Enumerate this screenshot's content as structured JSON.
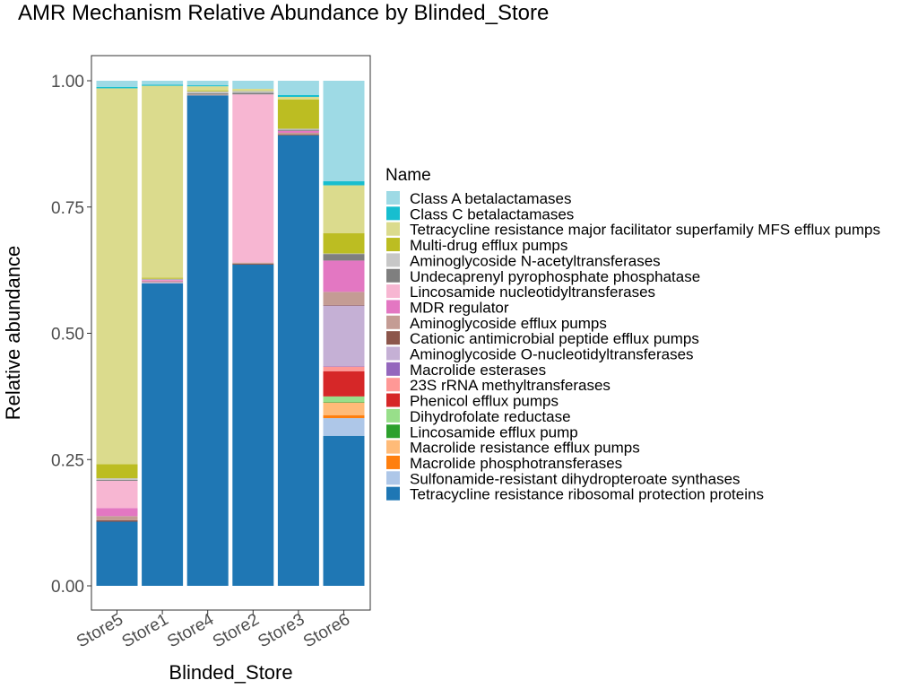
{
  "chart_data": {
    "type": "bar",
    "stacked": true,
    "title": "AMR Mechanism Relative Abundance by Blinded_Store",
    "xlabel": "Blinded_Store",
    "ylabel": "Relative abundance",
    "ylim": [
      0,
      1
    ],
    "yticks": [
      "0.00",
      "0.25",
      "0.50",
      "0.75",
      "1.00"
    ],
    "ytick_values": [
      0,
      0.25,
      0.5,
      0.75,
      1.0
    ],
    "grid": false,
    "legend_position": "right",
    "legend_title": "Name",
    "categories": [
      "Store5",
      "Store1",
      "Store4",
      "Store2",
      "Store3",
      "Store6"
    ],
    "series": [
      {
        "name": "Tetracycline resistance ribosomal protection proteins",
        "color": "#1f77b4",
        "values": [
          0.127,
          0.599,
          0.971,
          0.636,
          0.892,
          0.297
        ]
      },
      {
        "name": "Sulfonamide-resistant dihydropteroate synthases",
        "color": "#aec7e8",
        "values": [
          0,
          0,
          0,
          0,
          0,
          0.035
        ]
      },
      {
        "name": "Macrolide phosphotransferases",
        "color": "#ff7f0e",
        "values": [
          0,
          0,
          0,
          0,
          0,
          0.006
        ]
      },
      {
        "name": "Macrolide resistance efflux pumps",
        "color": "#ffbb78",
        "values": [
          0,
          0,
          0,
          0,
          0,
          0.025
        ]
      },
      {
        "name": "Lincosamide efflux pump",
        "color": "#2ca02c",
        "values": [
          0,
          0,
          0,
          0,
          0,
          0.001
        ]
      },
      {
        "name": "Dihydrofolate reductase",
        "color": "#98df8a",
        "values": [
          0,
          0,
          0,
          0,
          0,
          0.011
        ]
      },
      {
        "name": "Phenicol efflux pumps",
        "color": "#d62728",
        "values": [
          0,
          0,
          0,
          0,
          0,
          0.05
        ]
      },
      {
        "name": "23S rRNA methyltransferases",
        "color": "#ff9896",
        "values": [
          0,
          0,
          0,
          0,
          0,
          0.009
        ]
      },
      {
        "name": "Macrolide esterases",
        "color": "#9467bd",
        "values": [
          0,
          0,
          0,
          0,
          0,
          0.001
        ]
      },
      {
        "name": "Aminoglycoside O-nucleotidyltransferases",
        "color": "#c5b0d5",
        "values": [
          0,
          0.002,
          0,
          0,
          0,
          0.12
        ]
      },
      {
        "name": "Cationic antimicrobial peptide efflux pumps",
        "color": "#8c564b",
        "values": [
          0.003,
          0,
          0,
          0.002,
          0.002,
          0.001
        ]
      },
      {
        "name": "Aminoglycoside efflux pumps",
        "color": "#c49c94",
        "values": [
          0.008,
          0.002,
          0.002,
          0.002,
          0.003,
          0.026
        ]
      },
      {
        "name": "MDR regulator",
        "color": "#e377c2",
        "values": [
          0.016,
          0.002,
          0,
          0,
          0.004,
          0.062
        ]
      },
      {
        "name": "Lincosamide nucleotidyltransferases",
        "color": "#f7b6d2",
        "values": [
          0.054,
          0.001,
          0,
          0.333,
          0,
          0
        ]
      },
      {
        "name": "Undecaprenyl pyrophosphate phosphatase",
        "color": "#7f7f7f",
        "values": [
          0.002,
          0.001,
          0.002,
          0.003,
          0.002,
          0.013
        ]
      },
      {
        "name": "Aminoglycoside N-acetyltransferases",
        "color": "#c7c7c7",
        "values": [
          0.003,
          0.001,
          0.004,
          0.004,
          0.002,
          0.001
        ]
      },
      {
        "name": "Multi-drug efflux pumps",
        "color": "#bcbd22",
        "values": [
          0.028,
          0.002,
          0.002,
          0.001,
          0.058,
          0.04
        ]
      },
      {
        "name": "Tetracycline resistance major facilitator superfamily MFS efflux pumps",
        "color": "#dbdb8d",
        "values": [
          0.744,
          0.38,
          0.008,
          0.003,
          0.005,
          0.095
        ]
      },
      {
        "name": "Class C betalactamases",
        "color": "#17becf",
        "values": [
          0.003,
          0.002,
          0.002,
          0,
          0.004,
          0.008
        ]
      },
      {
        "name": "Class A betalactamases",
        "color": "#9edae5",
        "values": [
          0.012,
          0.008,
          0.009,
          0.016,
          0.028,
          0.199
        ]
      }
    ]
  }
}
